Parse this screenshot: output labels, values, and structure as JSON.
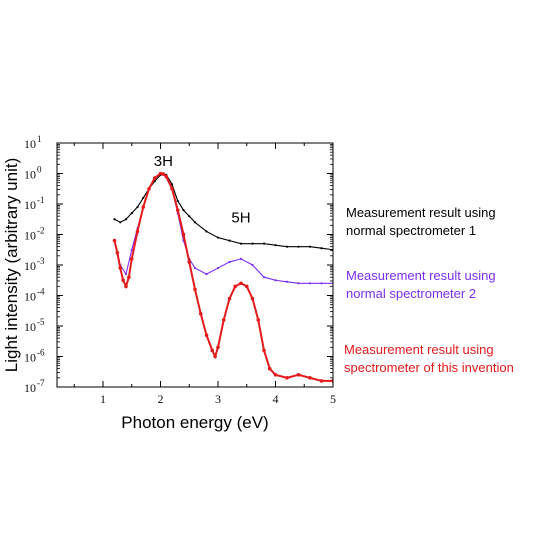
{
  "chart_data": {
    "type": "line",
    "title": "",
    "xlabel": "Photon energy (eV)",
    "ylabel": "Light intensity (arbitrary unit)",
    "xlim": [
      0.2,
      5.0
    ],
    "ylim_log10": [
      -7,
      1
    ],
    "yscale": "log",
    "x_ticks": [
      "1",
      "2",
      "3",
      "4",
      "5"
    ],
    "y_tick_exponents": [
      "1",
      "0",
      "-1",
      "-2",
      "-3",
      "-4",
      "-5",
      "-6",
      "-7"
    ],
    "y_tick_base": "10",
    "grid": false,
    "annotations": [
      {
        "text": "3H",
        "x": 2.05,
        "log10_y": 0.25
      },
      {
        "text": "5H",
        "x": 3.4,
        "log10_y": -1.6
      }
    ],
    "series": [
      {
        "name": "Measurement result using normal spectrometer 1",
        "color": "#000000",
        "x": [
          1.2,
          1.3,
          1.4,
          1.5,
          1.6,
          1.7,
          1.8,
          1.9,
          2.0,
          2.05,
          2.1,
          2.2,
          2.3,
          2.4,
          2.5,
          2.6,
          2.8,
          3.0,
          3.2,
          3.4,
          3.6,
          3.8,
          4.0,
          4.2,
          4.4,
          4.6,
          4.8,
          5.0
        ],
        "log10_y": [
          -1.5,
          -1.6,
          -1.5,
          -1.3,
          -1.1,
          -0.8,
          -0.5,
          -0.25,
          -0.05,
          0.0,
          -0.05,
          -0.35,
          -0.9,
          -1.2,
          -1.4,
          -1.6,
          -1.9,
          -2.1,
          -2.2,
          -2.3,
          -2.3,
          -2.3,
          -2.35,
          -2.4,
          -2.4,
          -2.4,
          -2.45,
          -2.5
        ]
      },
      {
        "name": "Measurement result using normal spectrometer 2",
        "color": "#7b2ff7",
        "x": [
          1.2,
          1.3,
          1.4,
          1.5,
          1.6,
          1.7,
          1.8,
          1.9,
          2.0,
          2.05,
          2.1,
          2.2,
          2.3,
          2.4,
          2.5,
          2.6,
          2.8,
          3.0,
          3.2,
          3.4,
          3.6,
          3.8,
          4.0,
          4.2,
          4.4,
          4.6,
          4.8,
          5.0
        ],
        "log10_y": [
          -2.2,
          -3.0,
          -3.3,
          -2.5,
          -1.8,
          -1.1,
          -0.5,
          -0.15,
          0.0,
          0.0,
          -0.1,
          -0.5,
          -1.3,
          -2.2,
          -2.8,
          -3.1,
          -3.3,
          -3.1,
          -2.9,
          -2.8,
          -3.0,
          -3.4,
          -3.5,
          -3.55,
          -3.6,
          -3.6,
          -3.6,
          -3.6
        ]
      },
      {
        "name": "Measurement result using spectrometer of this invention",
        "color": "#e41a1c",
        "x": [
          1.2,
          1.25,
          1.3,
          1.35,
          1.4,
          1.45,
          1.5,
          1.6,
          1.7,
          1.8,
          1.9,
          2.0,
          2.05,
          2.1,
          2.2,
          2.3,
          2.4,
          2.5,
          2.6,
          2.7,
          2.8,
          2.9,
          2.95,
          3.0,
          3.1,
          3.2,
          3.3,
          3.4,
          3.5,
          3.6,
          3.7,
          3.8,
          3.9,
          4.0,
          4.2,
          4.4,
          4.6,
          4.8,
          5.0
        ],
        "log10_y": [
          -2.2,
          -2.6,
          -3.1,
          -3.5,
          -3.7,
          -3.4,
          -2.8,
          -1.9,
          -1.1,
          -0.5,
          -0.15,
          0.0,
          -0.02,
          -0.1,
          -0.5,
          -1.2,
          -2.0,
          -2.9,
          -3.8,
          -4.6,
          -5.3,
          -5.8,
          -6.0,
          -5.7,
          -4.8,
          -4.1,
          -3.7,
          -3.6,
          -3.7,
          -4.1,
          -4.8,
          -5.8,
          -6.4,
          -6.6,
          -6.7,
          -6.6,
          -6.7,
          -6.8,
          -6.8
        ]
      }
    ]
  }
}
